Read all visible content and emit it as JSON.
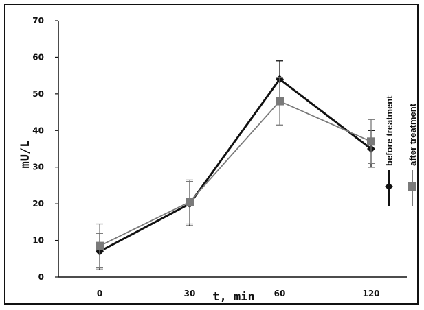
{
  "chart_data": {
    "type": "line",
    "x": [
      0,
      30,
      60,
      120
    ],
    "xticks": [
      "0",
      "30",
      "60",
      "120"
    ],
    "yticks": [
      "0",
      "10",
      "20",
      "30",
      "40",
      "50",
      "60",
      "70"
    ],
    "ylim": [
      0,
      70
    ],
    "xlabel": "t, min",
    "ylabel": "mU/L",
    "legend_position": "right",
    "series": [
      {
        "name": "before treatment",
        "values": [
          7,
          20,
          54,
          35
        ],
        "errors": [
          5,
          6,
          5,
          5
        ],
        "color": "#111111",
        "marker": "diamond"
      },
      {
        "name": "after treatment",
        "values": [
          8.5,
          20.5,
          48,
          37
        ],
        "errors": [
          6,
          6,
          6.5,
          6
        ],
        "color": "#7a7a7a",
        "marker": "square"
      }
    ]
  }
}
